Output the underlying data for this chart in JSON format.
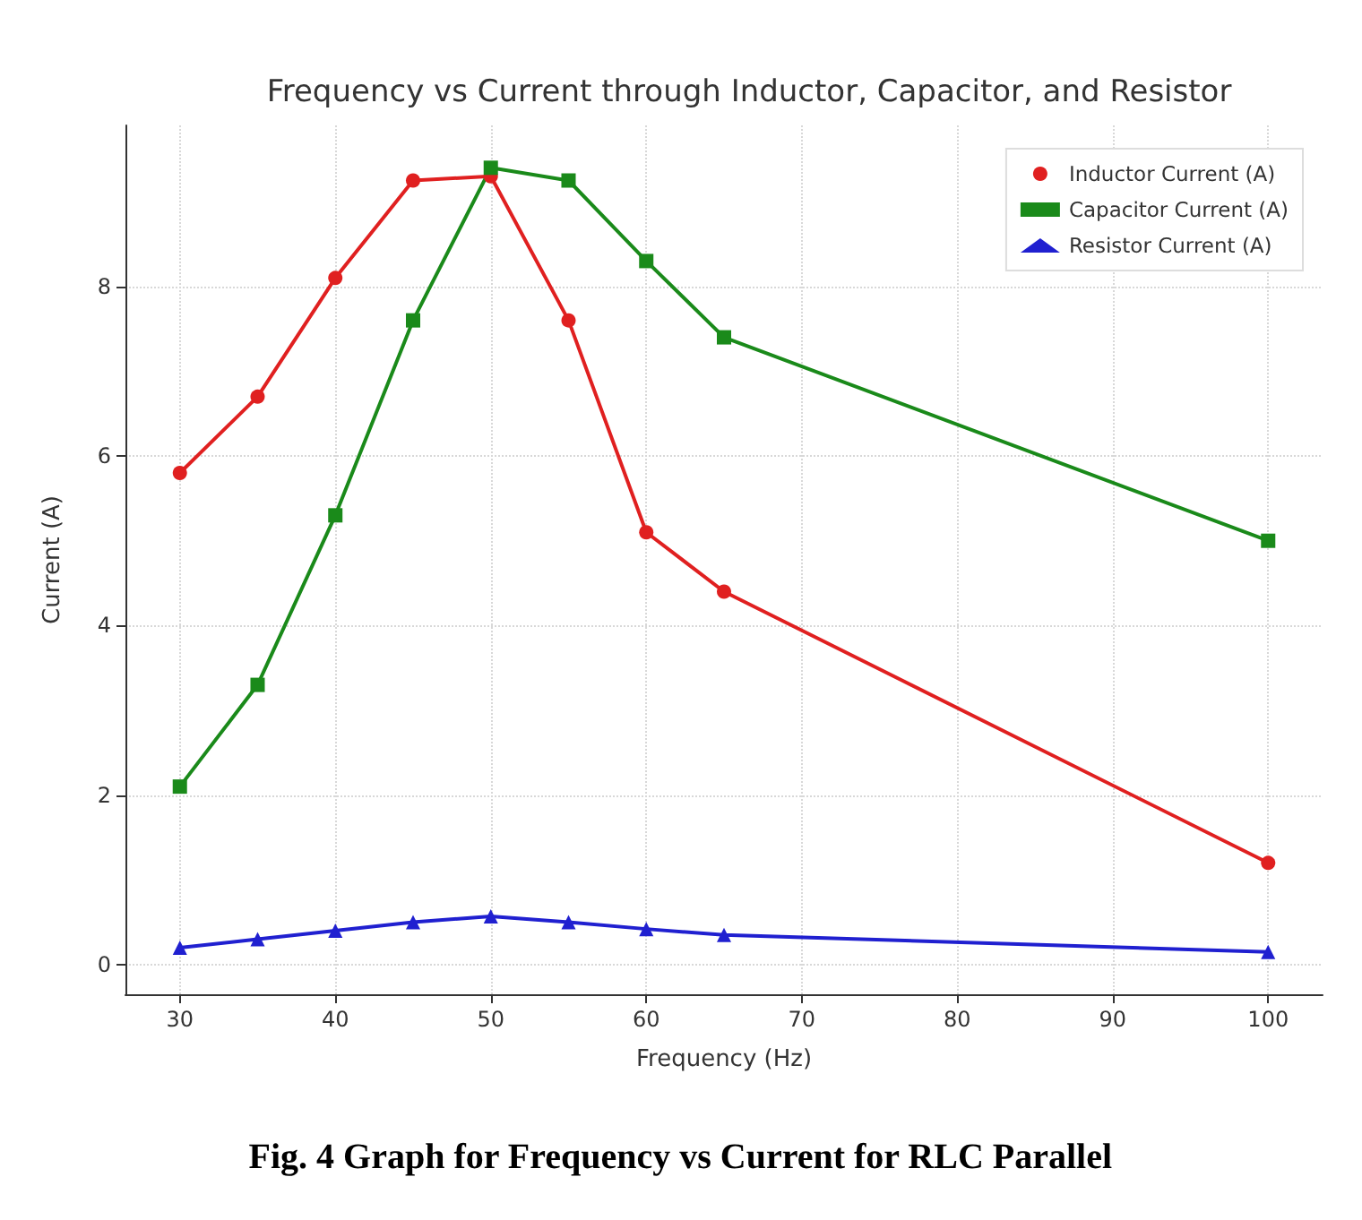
{
  "chart_data": {
    "type": "line",
    "title": "Frequency vs Current through Inductor, Capacitor, and Resistor",
    "xlabel": "Frequency (Hz)",
    "ylabel": "Current (A)",
    "x": [
      30,
      35,
      40,
      45,
      50,
      55,
      60,
      65,
      100
    ],
    "series": [
      {
        "name": "Inductor Current (A)",
        "color": "#e02020",
        "marker": "circle",
        "values": [
          5.8,
          6.7,
          8.1,
          9.25,
          9.3,
          7.6,
          5.1,
          4.4,
          1.2
        ]
      },
      {
        "name": "Capacitor Current (A)",
        "color": "#1a8a1a",
        "marker": "square",
        "values": [
          2.1,
          3.3,
          5.3,
          7.6,
          9.4,
          9.25,
          8.3,
          7.4,
          5.0
        ]
      },
      {
        "name": "Resistor Current (A)",
        "color": "#2020d0",
        "marker": "triangle",
        "values": [
          0.2,
          0.3,
          0.4,
          0.5,
          0.57,
          0.5,
          0.42,
          0.35,
          0.15
        ]
      }
    ],
    "xlim": [
      26.5,
      103.5
    ],
    "xticks": [
      30,
      40,
      50,
      60,
      70,
      80,
      90,
      100
    ],
    "ylim": [
      -0.35,
      9.9
    ],
    "yticks": [
      0,
      2,
      4,
      6,
      8
    ],
    "grid": true,
    "legend": "top right",
    "line_style": "solid",
    "annotations": [
      "Fig. 4 Graph for Frequency vs Current for RLC Parallel"
    ]
  }
}
